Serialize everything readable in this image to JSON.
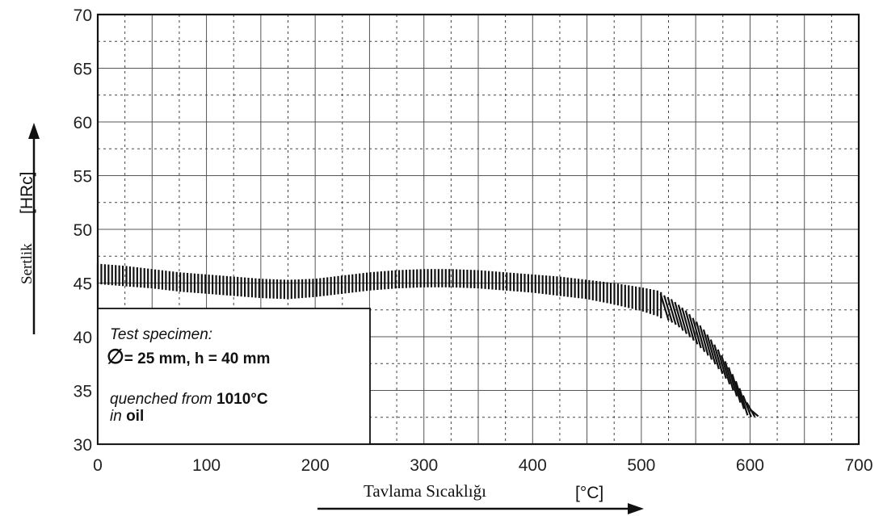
{
  "chart_data": {
    "type": "area",
    "title": "",
    "xlabel": "Tavlama Sıcaklığı",
    "xunit": "[°C]",
    "ylabel": "Sertlik",
    "yunit": "[HRc]",
    "xlim": [
      0,
      700
    ],
    "ylim": [
      30,
      70
    ],
    "xticks": [
      0,
      100,
      200,
      300,
      400,
      500,
      600,
      700
    ],
    "yticks": [
      30,
      35,
      40,
      45,
      50,
      55,
      60,
      65,
      70
    ],
    "grid": true,
    "series": [
      {
        "x": [
          0,
          25,
          50,
          75,
          100,
          125,
          150,
          175,
          200,
          225,
          250,
          275,
          300,
          325,
          350,
          375,
          400,
          425,
          450,
          475,
          500,
          515,
          530,
          545,
          560,
          575,
          585,
          595,
          605
        ],
        "upper": [
          46.8,
          46.6,
          46.3,
          46.0,
          45.8,
          45.6,
          45.4,
          45.3,
          45.4,
          45.7,
          46.0,
          46.2,
          46.3,
          46.3,
          46.2,
          46.0,
          45.8,
          45.6,
          45.3,
          45.0,
          44.6,
          44.3,
          43.6,
          42.4,
          40.8,
          38.7,
          37.0,
          35.0,
          33.0
        ],
        "lower": [
          44.9,
          44.7,
          44.5,
          44.2,
          44.0,
          43.8,
          43.6,
          43.5,
          43.7,
          44.0,
          44.3,
          44.5,
          44.6,
          44.6,
          44.5,
          44.3,
          44.1,
          43.8,
          43.5,
          43.0,
          42.4,
          41.9,
          41.0,
          39.6,
          38.0,
          36.0,
          34.3,
          32.5,
          32.6
        ]
      }
    ]
  },
  "legend": {
    "line1": "Test specimen:",
    "line2_symbol": "∅",
    "line2_text": "= 25 mm, h = 40 mm",
    "line3_prefix": "quenched from ",
    "line3_value": "1010°C",
    "line4_prefix": "in ",
    "line4_value": "oil"
  }
}
